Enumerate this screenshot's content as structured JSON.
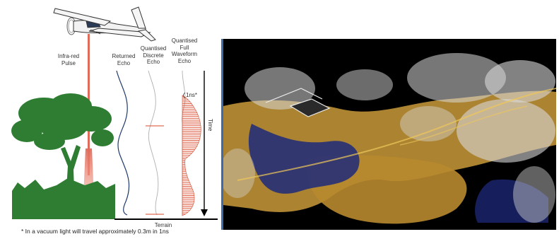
{
  "diagram": {
    "labels": {
      "infrared_pulse": "Infra-red\nPulse",
      "returned_echo": "Returned\nEcho",
      "discrete_echo": "Quantised\nDiscrete\nEcho",
      "waveform_echo": "Quantised\nFull\nWaveform\nEcho",
      "one_ns": "1ns*",
      "time": "Time",
      "terrain": "Terrain",
      "footnote": "* In a vacuum light will travel approximately 0.3m in 1ns"
    },
    "colors": {
      "tree": "#2e7d32",
      "pulse": "#e06b5a",
      "returned_echo_curve": "#1f3a6e",
      "discrete_echo_curve": "#b0b0b0",
      "discrete_echo_marks": "#d9482b",
      "waveform_hatch": "#d9482b",
      "waveform_outline": "#b0b0b0",
      "time_arrow": "#000000",
      "terrain_line": "#000000"
    },
    "icons": {
      "airplane": "airplane-icon",
      "tree": "tree-icon"
    }
  },
  "pointcloud": {
    "description_visible": "",
    "colors": {
      "background": "#000000",
      "vegetation": "#d8d8d8",
      "ground": "#c99a3a",
      "water": "#1d2a7a",
      "frame": "#3f6aa8"
    }
  }
}
